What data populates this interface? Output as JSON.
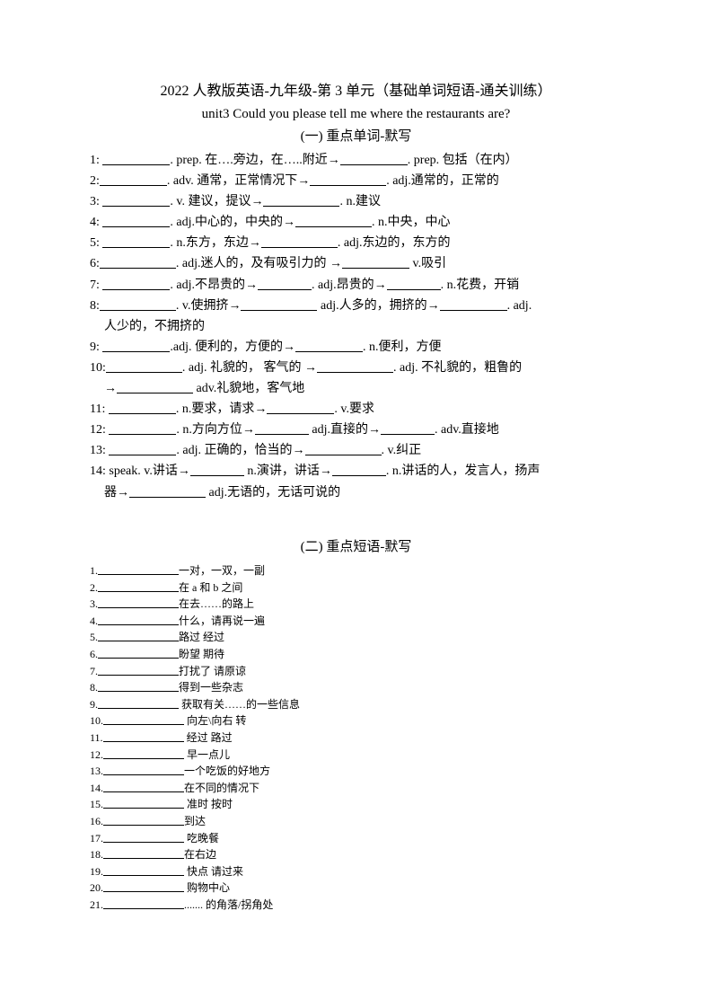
{
  "title_main": "2022 人教版英语-九年级-第 3 单元（基础单词短语-通关训练）",
  "title_sub": "unit3 Could you please tell me where the restaurants are?",
  "section1_title": "(一) 重点单词-默写",
  "section2_title": "(二) 重点短语-默写",
  "s1": {
    "i1a": "1:",
    "i1b": ". prep. 在….旁边，在…..附近→",
    "i1c": ". prep. 包括（在内）",
    "i2a": "2:",
    "i2b": ". adv. 通常，正常情况下→",
    "i2c": ". adj.通常的，正常的",
    "i3a": "3:",
    "i3b": ". v. 建议，提议→",
    "i3c": ". n.建议",
    "i4a": "4:",
    "i4b": ". adj.中心的，中央的→",
    "i4c": ". n.中央，中心",
    "i5a": "5:",
    "i5b": ". n.东方，东边→",
    "i5c": ". adj.东边的，东方的",
    "i6a": "6:",
    "i6b": ". adj.迷人的，及有吸引力的 →",
    "i6c": " v.吸引",
    "i7a": "7:",
    "i7b": ". adj.不昂贵的→",
    "i7c": ". adj.昂贵的→",
    "i7d": ". n.花费，开销",
    "i8a": "8:",
    "i8b": ". v.使拥挤→",
    "i8c": " adj.人多的，拥挤的→",
    "i8d": ". adj.",
    "i8e": "人少的，不拥挤的",
    "i9a": "9:",
    "i9b": ".adj. 便利的，方便的→",
    "i9c": ". n.便利，方便",
    "i10a": "10:",
    "i10b": ". adj. 礼貌的， 客气的 →",
    "i10c": ". adj. 不礼貌的，粗鲁的",
    "i10d": "→",
    "i10e": " adv.礼貌地，客气地",
    "i11a": "11:",
    "i11b": ". n.要求，请求→",
    "i11c": ". v.要求",
    "i12a": "12:",
    "i12b": ". n.方向方位→",
    "i12c": " adj.直接的→",
    "i12d": ". adv.直接地",
    "i13a": "13:",
    "i13b": ". adj. 正确的，恰当的→",
    "i13c": ". v.纠正",
    "i14a": "14: speak. v.讲话→",
    "i14b": " n.演讲，讲话→",
    "i14c": ". n.讲话的人，发言人，扬声",
    "i14d": "器→",
    "i14e": " adj.无语的，无话可说的"
  },
  "s2": [
    "一对，一双，一副",
    "在 a 和 b 之间",
    "在去……的路上",
    "什么，请再说一遍",
    "路过 经过",
    "盼望 期待",
    "打扰了 请原谅",
    "得到一些杂志",
    " 获取有关……的一些信息",
    " 向左\\向右 转",
    " 经过 路过",
    " 早一点儿",
    "一个吃饭的好地方",
    "在不同的情况下",
    " 准时 按时",
    "到达",
    " 吃晚餐",
    "在右边",
    " 快点 请过来",
    " 购物中心",
    "....... 的角落/拐角处"
  ]
}
